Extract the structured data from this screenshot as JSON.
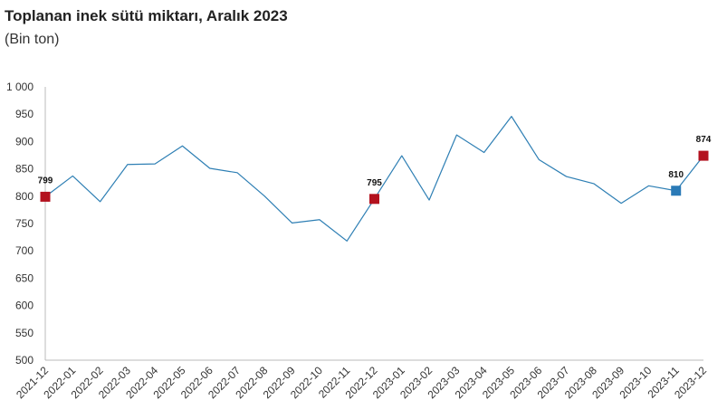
{
  "chart_data": {
    "type": "line",
    "title": "Toplanan inek sütü miktarı, Aralık 2023",
    "subtitle": "(Bin ton)",
    "xlabel": "",
    "ylabel": "",
    "ylim": [
      500,
      1000
    ],
    "yticks": [
      "1 000",
      "950",
      "900",
      "850",
      "800",
      "750",
      "700",
      "650",
      "600",
      "550",
      "500"
    ],
    "categories": [
      "2021-12",
      "2022-01",
      "2022-02",
      "2022-03",
      "2022-04",
      "2022-05",
      "2022-06",
      "2022-07",
      "2022-08",
      "2022-09",
      "2022-10",
      "2022-11",
      "2022-12",
      "2023-01",
      "2023-02",
      "2023-03",
      "2023-04",
      "2023-05",
      "2023-06",
      "2023-07",
      "2023-08",
      "2023-09",
      "2023-10",
      "2023-11",
      "2023-12"
    ],
    "series": [
      {
        "values": [
          799,
          837,
          790,
          858,
          859,
          892,
          851,
          843,
          800,
          751,
          757,
          718,
          795,
          874,
          793,
          912,
          880,
          946,
          867,
          836,
          823,
          787,
          819,
          810,
          874
        ],
        "color": "#2e7fb4"
      }
    ],
    "highlighted_points": [
      {
        "index": 0,
        "label": "799",
        "color": "#b3121f"
      },
      {
        "index": 12,
        "label": "795",
        "color": "#b3121f"
      },
      {
        "index": 23,
        "label": "810",
        "color": "#2a7ab7"
      },
      {
        "index": 24,
        "label": "874",
        "color": "#b3121f"
      }
    ],
    "grid": false,
    "legend": "none"
  }
}
